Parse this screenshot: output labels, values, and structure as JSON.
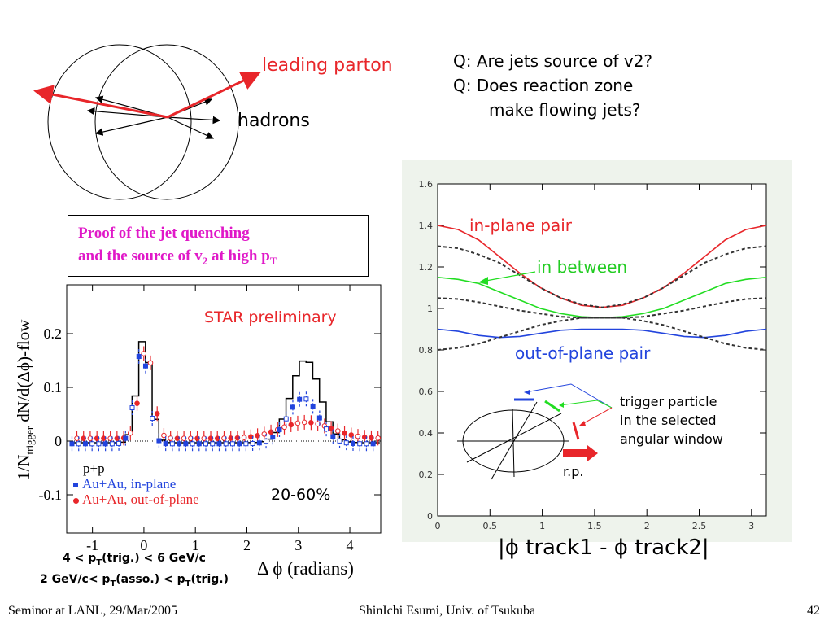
{
  "diagram": {
    "leading_parton": "leading parton",
    "hadrons": "hadrons"
  },
  "questions": {
    "q1": "Q: Are jets source of v2?",
    "q2": "Q: Does reaction zone",
    "q2b": "make flowing jets?"
  },
  "proof_box": {
    "line1": "Proof of the jet quenching",
    "line2": "and the source of v",
    "line2_sub": "2",
    "line2_mid": " at high p",
    "line2_sub2": "T"
  },
  "left_plot": {
    "ylabel_pre": "1/N",
    "ylabel_sub": "trigger",
    "ylabel_post": " dN/d(Δϕ)-flow",
    "ytick_labels": [
      "0.2",
      "0.1",
      "0",
      "-0.1"
    ],
    "xtick_labels": [
      "-1",
      "0",
      "1",
      "2",
      "3",
      "4"
    ],
    "xlabel": "Δ ϕ (radians)",
    "annotation_star": "STAR preliminary",
    "annotation_centrality": "20-60%",
    "legend": [
      "p+p",
      "Au+Au, in-plane",
      "Au+Au, out-of-plane"
    ],
    "cuts_line1_a": "4 < p",
    "cuts_line1_sub": "T",
    "cuts_line1_b": "(trig.) < 6 GeV/c",
    "cuts_line2_a": "2 GeV/c< p",
    "cuts_line2_sub": "T",
    "cuts_line2_b": "(asso.) < p",
    "cuts_line2_sub2": "T",
    "cuts_line2_c": "(trig.)"
  },
  "chart_data": {
    "type": "line",
    "x": [
      0,
      0.1963,
      0.3927,
      0.589,
      0.7854,
      0.9817,
      1.1781,
      1.3744,
      1.5708,
      1.7671,
      1.9635,
      2.1598,
      2.3562,
      2.5525,
      2.7489,
      2.9452,
      3.1416
    ],
    "series": [
      {
        "name": "in-plane pair",
        "color": "#e8262a",
        "values": [
          1.4,
          1.38,
          1.33,
          1.25,
          1.17,
          1.1,
          1.05,
          1.015,
          1.005,
          1.015,
          1.05,
          1.1,
          1.17,
          1.25,
          1.33,
          1.38,
          1.4
        ]
      },
      {
        "name": "in between",
        "color": "#22dd22",
        "values": [
          1.15,
          1.14,
          1.12,
          1.08,
          1.04,
          1.0,
          0.975,
          0.96,
          0.955,
          0.96,
          0.975,
          1.0,
          1.04,
          1.08,
          1.12,
          1.14,
          1.15
        ]
      },
      {
        "name": "out-of-plane pair",
        "color": "#2244dd",
        "values": [
          0.9,
          0.89,
          0.87,
          0.86,
          0.865,
          0.88,
          0.895,
          0.9,
          0.9,
          0.9,
          0.895,
          0.88,
          0.865,
          0.86,
          0.87,
          0.89,
          0.9
        ]
      },
      {
        "color": "#333333",
        "values": [
          1.3,
          1.29,
          1.26,
          1.22,
          1.16,
          1.1,
          1.05,
          1.02,
          1.005,
          1.02,
          1.05,
          1.1,
          1.16,
          1.22,
          1.26,
          1.29,
          1.3
        ]
      },
      {
        "color": "#333333",
        "values": [
          1.05,
          1.045,
          1.03,
          1.01,
          0.99,
          0.975,
          0.96,
          0.955,
          0.955,
          0.955,
          0.96,
          0.975,
          0.99,
          1.01,
          1.03,
          1.045,
          1.05
        ]
      },
      {
        "color": "#333333",
        "values": [
          0.8,
          0.81,
          0.83,
          0.86,
          0.89,
          0.92,
          0.94,
          0.955,
          0.955,
          0.955,
          0.94,
          0.92,
          0.89,
          0.86,
          0.83,
          0.81,
          0.8
        ]
      }
    ],
    "xlim": [
      0,
      3.1416
    ],
    "ylim": [
      0,
      1.6
    ],
    "xticks": [
      "0",
      "0.5",
      "1",
      "1.5",
      "2",
      "2.5",
      "3"
    ],
    "yticks": [
      "0",
      "0.2",
      "0.4",
      "0.6",
      "0.8",
      "1",
      "1.2",
      "1.4",
      "1.6"
    ],
    "xlabel": "|ϕ track1 - ϕ track2|",
    "annotations": {
      "in_plane": "in-plane pair",
      "in_between": "in between",
      "out_of_plane": "out-of-plane pair",
      "trigger1": "trigger particle",
      "trigger2": "in the selected",
      "trigger3": "angular window",
      "rp": "r.p."
    }
  },
  "footer": {
    "left": "Seminor at LANL, 29/Mar/2005",
    "center": "ShinIchi Esumi, Univ. of Tsukuba",
    "right": "42"
  }
}
